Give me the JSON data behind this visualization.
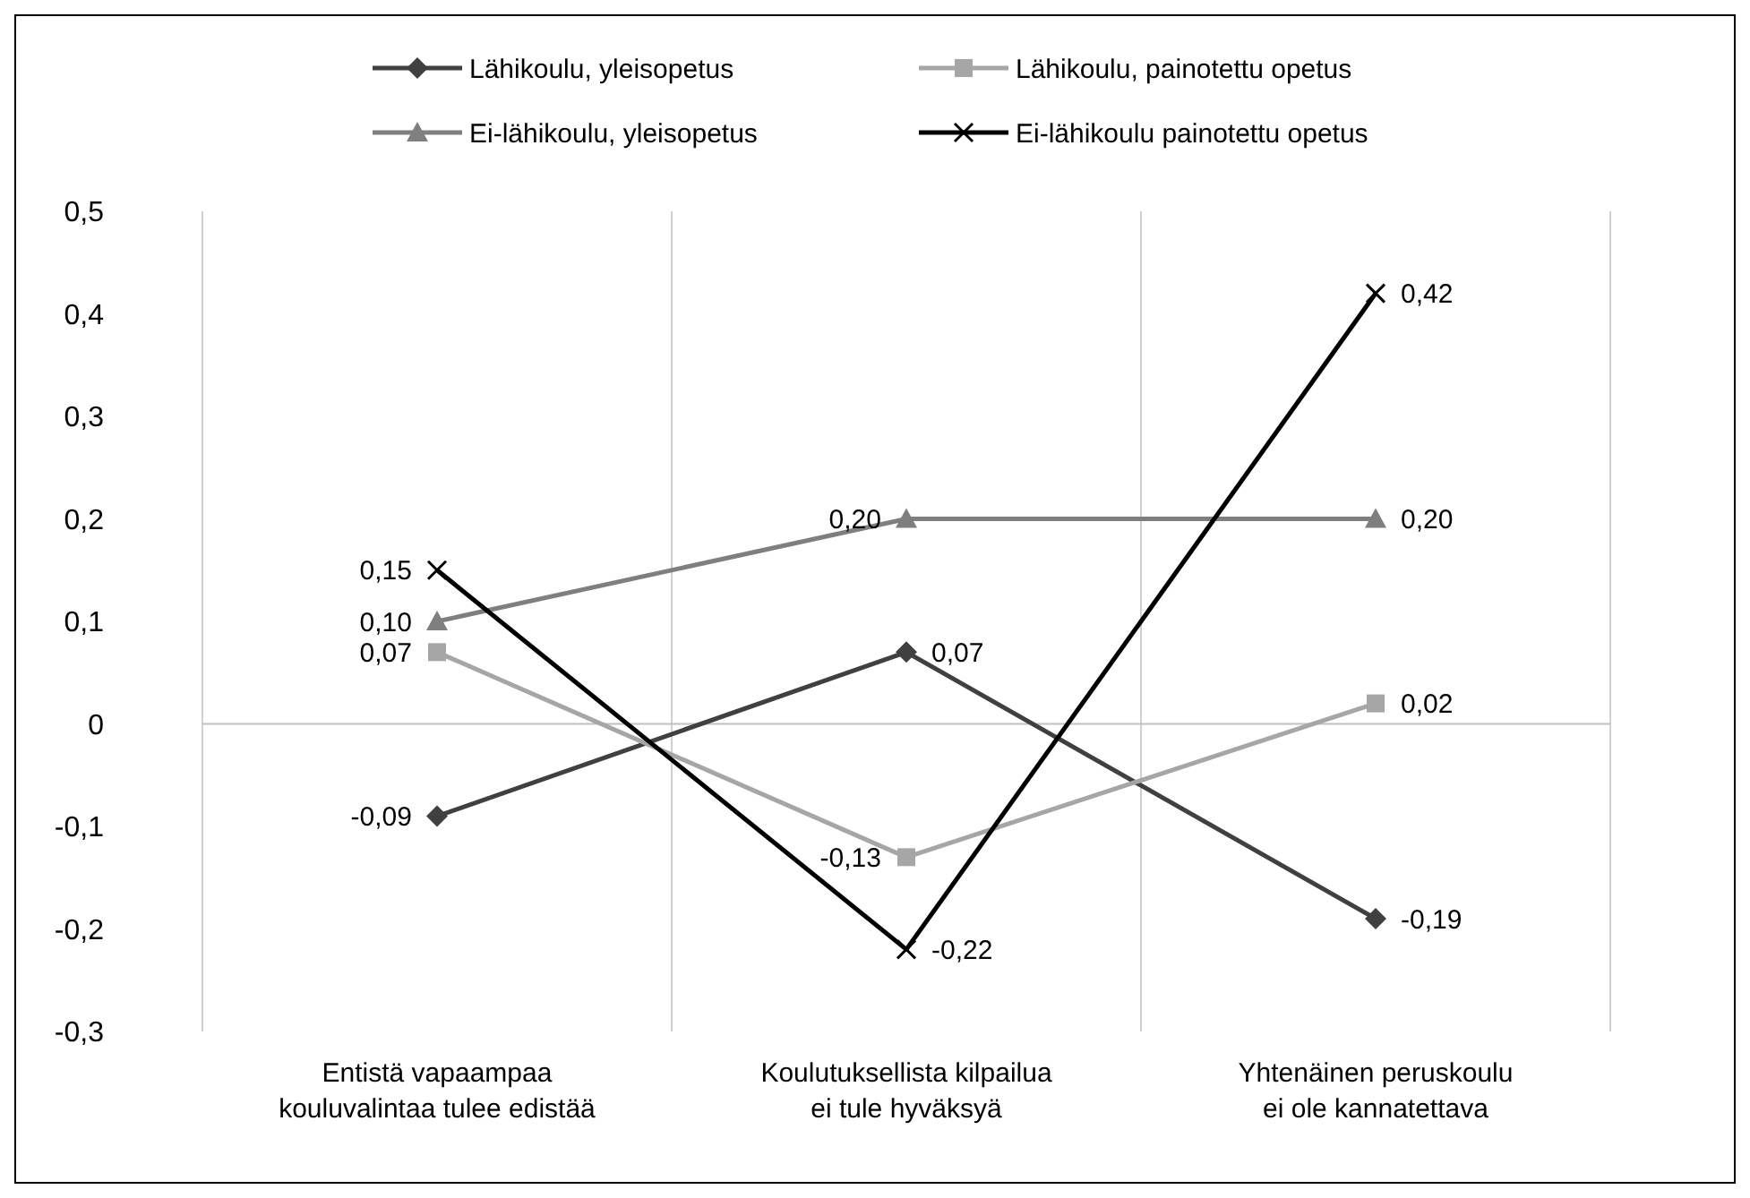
{
  "chart_data": {
    "type": "line",
    "categories": [
      "Entistä vapaampaa\nkouluvalintaa tulee edistää",
      "Koulutuksellista kilpailua\nei tule hyväksyä",
      "Yhtenäinen peruskoulu\nei ole kannatettava"
    ],
    "series": [
      {
        "name": "Lähikoulu, yleisopetus",
        "color": "#404040",
        "marker": "diamond",
        "values": [
          -0.09,
          0.07,
          -0.19
        ],
        "value_labels": [
          "-0,09",
          "0,07",
          "-0,19"
        ]
      },
      {
        "name": "Lähikoulu, painotettu opetus",
        "color": "#a6a6a6",
        "marker": "square",
        "values": [
          0.07,
          -0.13,
          0.02
        ],
        "value_labels": [
          "0,07",
          "-0,13",
          "0,02"
        ]
      },
      {
        "name": "Ei-lähikoulu, yleisopetus",
        "color": "#7f7f7f",
        "marker": "triangle",
        "values": [
          0.1,
          0.2,
          0.2
        ],
        "value_labels": [
          "0,10",
          "0,20",
          "0,20"
        ]
      },
      {
        "name": "Ei-lähikoulu painotettu opetus",
        "color": "#000000",
        "marker": "cross",
        "values": [
          0.15,
          -0.22,
          0.42
        ],
        "value_labels": [
          "0,15",
          "-0,22",
          "0,42"
        ]
      }
    ],
    "ylim": [
      -0.3,
      0.5
    ],
    "yticks": [
      {
        "value": -0.3,
        "label": "-0,3"
      },
      {
        "value": -0.2,
        "label": "-0,2"
      },
      {
        "value": -0.1,
        "label": "-0,1"
      },
      {
        "value": 0,
        "label": "0"
      },
      {
        "value": 0.1,
        "label": "0,1"
      },
      {
        "value": 0.2,
        "label": "0,2"
      },
      {
        "value": 0.3,
        "label": "0,3"
      },
      {
        "value": 0.4,
        "label": "0,4"
      },
      {
        "value": 0.5,
        "label": "0,5"
      }
    ],
    "grid": "x",
    "legend": "top",
    "line_style": "solid"
  }
}
